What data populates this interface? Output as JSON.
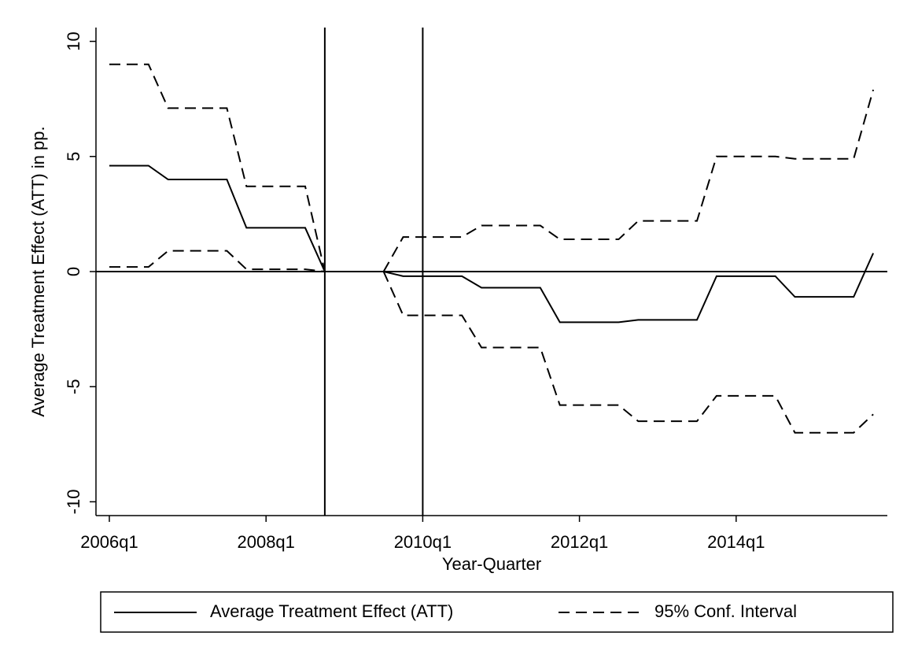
{
  "chart_data": {
    "type": "line",
    "x_label": "Year-Quarter",
    "y_label": "Average Treatment Effect (ATT) in pp.",
    "x": [
      "2006q1",
      "2006q2",
      "2006q3",
      "2006q4",
      "2007q1",
      "2007q2",
      "2007q3",
      "2007q4",
      "2008q1",
      "2008q2",
      "2008q3",
      "2008q4",
      "2009q1",
      "2009q2",
      "2009q3",
      "2009q4",
      "2010q1",
      "2010q2",
      "2010q3",
      "2010q4",
      "2011q1",
      "2011q2",
      "2011q3",
      "2011q4",
      "2012q1",
      "2012q2",
      "2012q3",
      "2012q4",
      "2013q1",
      "2013q2",
      "2013q3",
      "2013q4",
      "2014q1",
      "2014q2",
      "2014q3",
      "2014q4",
      "2015q1",
      "2015q2",
      "2015q3",
      "2015q4"
    ],
    "xticks": [
      "2006q1",
      "2008q1",
      "2010q1",
      "2012q1",
      "2014q1"
    ],
    "ylim": [
      -10.6,
      10.6
    ],
    "yticks": [
      -10,
      -5,
      0,
      5,
      10
    ],
    "reference_x": [
      "2008q4",
      "2010q1"
    ],
    "reference_y": [
      0
    ],
    "series": [
      {
        "name": "Average Treatment Effect (ATT)",
        "color": "#000000",
        "dash": false,
        "values": [
          4.6,
          4.6,
          4.6,
          4.0,
          4.0,
          4.0,
          4.0,
          1.9,
          1.9,
          1.9,
          1.9,
          0,
          null,
          null,
          0,
          -0.2,
          -0.2,
          -0.2,
          -0.2,
          -0.7,
          -0.7,
          -0.7,
          -0.7,
          -2.2,
          -2.2,
          -2.2,
          -2.2,
          -2.1,
          -2.1,
          -2.1,
          -2.1,
          -0.2,
          -0.2,
          -0.2,
          -0.2,
          -1.1,
          -1.1,
          -1.1,
          -1.1,
          0.8
        ]
      },
      {
        "name": "95% Conf. Interval",
        "color": "#000000",
        "dash": true,
        "values": [
          9.0,
          9.0,
          9.0,
          7.1,
          7.1,
          7.1,
          7.1,
          3.7,
          3.7,
          3.7,
          3.7,
          0,
          null,
          null,
          0,
          1.5,
          1.5,
          1.5,
          1.5,
          2.0,
          2.0,
          2.0,
          2.0,
          1.4,
          1.4,
          1.4,
          1.4,
          2.2,
          2.2,
          2.2,
          2.2,
          5.0,
          5.0,
          5.0,
          5.0,
          4.9,
          4.9,
          4.9,
          4.9,
          7.9
        ]
      },
      {
        "color": "#000000",
        "dash": true,
        "legend": false,
        "values": [
          0.2,
          0.2,
          0.2,
          0.9,
          0.9,
          0.9,
          0.9,
          0.1,
          0.1,
          0.1,
          0.1,
          0,
          null,
          null,
          0,
          -1.9,
          -1.9,
          -1.9,
          -1.9,
          -3.3,
          -3.3,
          -3.3,
          -3.3,
          -5.8,
          -5.8,
          -5.8,
          -5.8,
          -6.5,
          -6.5,
          -6.5,
          -6.5,
          -5.4,
          -5.4,
          -5.4,
          -5.4,
          -7.0,
          -7.0,
          -7.0,
          -7.0,
          -6.2
        ]
      }
    ]
  }
}
